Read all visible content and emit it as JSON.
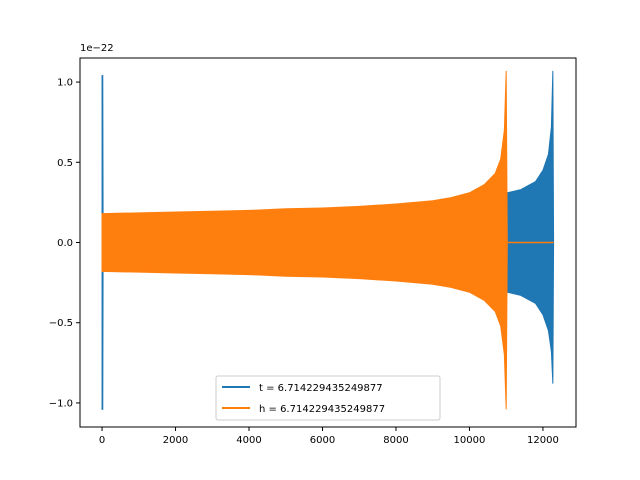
{
  "chart_data": {
    "type": "line",
    "title": "",
    "xlabel": "",
    "ylabel": "",
    "y_offset_label": "1e−22",
    "xlim": [
      -600,
      12900
    ],
    "ylim": [
      -1.15,
      1.15
    ],
    "grid": false,
    "legend_position": "lower center",
    "x_ticks": [
      {
        "value": 0,
        "label": "0"
      },
      {
        "value": 2000,
        "label": "2000"
      },
      {
        "value": 4000,
        "label": "4000"
      },
      {
        "value": 6000,
        "label": "6000"
      },
      {
        "value": 8000,
        "label": "8000"
      },
      {
        "value": 10000,
        "label": "10000"
      },
      {
        "value": 12000,
        "label": "12000"
      }
    ],
    "y_ticks": [
      {
        "value": 1.0,
        "label": "1.0"
      },
      {
        "value": 0.5,
        "label": "0.5"
      },
      {
        "value": 0.0,
        "label": "0.0"
      },
      {
        "value": -0.5,
        "label": "−0.5"
      },
      {
        "value": -1.0,
        "label": "−1.0"
      }
    ],
    "series": [
      {
        "name": "t = 6.714229435249877",
        "color": "#1f77b4",
        "envelope_upper": [
          [
            0,
            1.04
          ],
          [
            20,
            1.04
          ],
          [
            30,
            0.0
          ],
          [
            11030,
            0.0
          ],
          [
            11030,
            0.31
          ],
          [
            11400,
            0.33
          ],
          [
            11800,
            0.38
          ],
          [
            12000,
            0.45
          ],
          [
            12150,
            0.55
          ],
          [
            12230,
            0.72
          ],
          [
            12270,
            1.07
          ],
          [
            12290,
            0.0
          ]
        ],
        "envelope_lower": [
          [
            0,
            -1.04
          ],
          [
            20,
            -1.04
          ],
          [
            30,
            0.0
          ],
          [
            11030,
            0.0
          ],
          [
            11030,
            -0.31
          ],
          [
            11400,
            -0.33
          ],
          [
            11800,
            -0.38
          ],
          [
            12000,
            -0.45
          ],
          [
            12150,
            -0.55
          ],
          [
            12230,
            -0.68
          ],
          [
            12270,
            -0.88
          ],
          [
            12290,
            0.0
          ]
        ],
        "flat_segment": [
          [
            11030,
            0.0
          ],
          [
            12290,
            0.0
          ]
        ]
      },
      {
        "name": "h = 6.714229435249877",
        "color": "#ff7f0e",
        "envelope_upper": [
          [
            0,
            0.18
          ],
          [
            1000,
            0.185
          ],
          [
            2000,
            0.19
          ],
          [
            3000,
            0.195
          ],
          [
            4000,
            0.2
          ],
          [
            5000,
            0.21
          ],
          [
            6000,
            0.215
          ],
          [
            7000,
            0.225
          ],
          [
            8000,
            0.24
          ],
          [
            9000,
            0.26
          ],
          [
            9500,
            0.28
          ],
          [
            10000,
            0.31
          ],
          [
            10400,
            0.36
          ],
          [
            10700,
            0.43
          ],
          [
            10850,
            0.52
          ],
          [
            10950,
            0.7
          ],
          [
            11000,
            1.07
          ],
          [
            11030,
            0.0
          ]
        ],
        "envelope_lower": [
          [
            0,
            -0.18
          ],
          [
            1000,
            -0.185
          ],
          [
            2000,
            -0.19
          ],
          [
            3000,
            -0.195
          ],
          [
            4000,
            -0.2
          ],
          [
            5000,
            -0.21
          ],
          [
            6000,
            -0.215
          ],
          [
            7000,
            -0.225
          ],
          [
            8000,
            -0.24
          ],
          [
            9000,
            -0.26
          ],
          [
            9500,
            -0.28
          ],
          [
            10000,
            -0.31
          ],
          [
            10400,
            -0.36
          ],
          [
            10700,
            -0.43
          ],
          [
            10850,
            -0.52
          ],
          [
            10950,
            -0.7
          ],
          [
            11000,
            -1.04
          ],
          [
            11030,
            0.0
          ]
        ],
        "flat_segment": [
          [
            11030,
            0.0
          ],
          [
            12290,
            0.0
          ]
        ]
      }
    ]
  }
}
